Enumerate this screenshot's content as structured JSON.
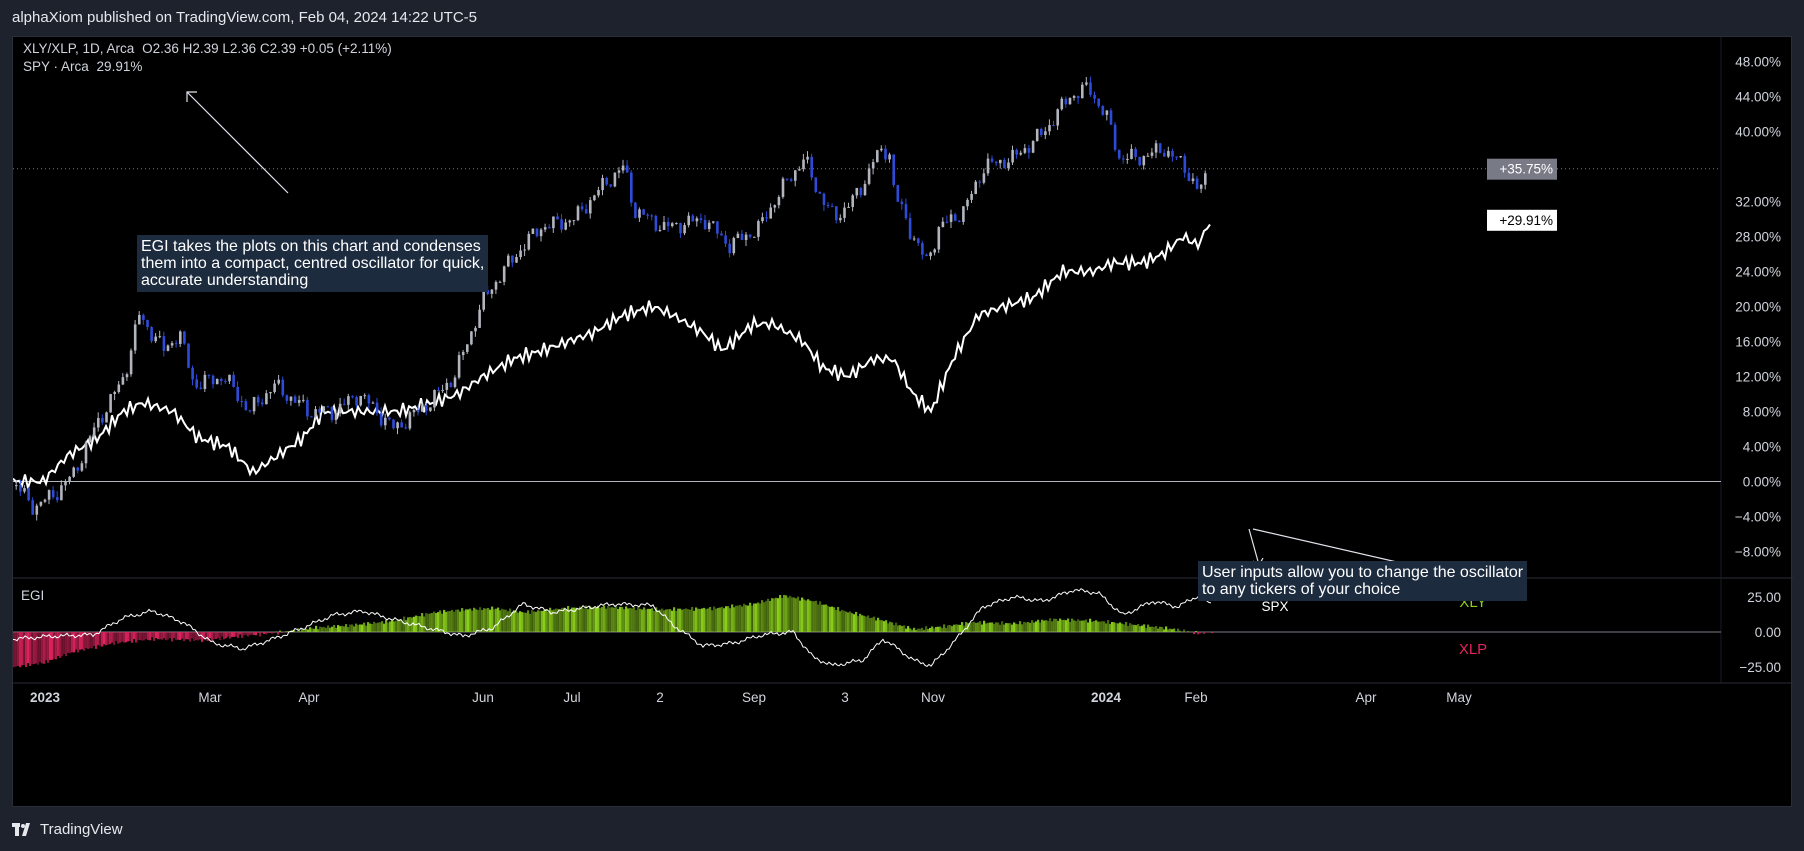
{
  "publish_bar": {
    "text": "alphaXiom published on TradingView.com, Feb 04, 2024 14:22 UTC-5"
  },
  "legend": {
    "symbol": "XLY/XLP, 1D, Arca",
    "ohlc": "O2.36  H2.39  L2.36  C2.39  +0.05 (+2.11%)",
    "compare_symbol": "SPY · Arca",
    "compare_value": "29.91%"
  },
  "notes": {
    "egi_note": [
      "EGI takes the plots on this chart and condenses",
      "them into a compact, centred oscillator for quick,",
      "accurate understanding"
    ],
    "inputs_note": [
      "User inputs allow you to change the oscillator",
      "to any tickers of your choice"
    ]
  },
  "indicator": {
    "name": "EGI",
    "label_spx": "SPX",
    "label_xly": "XLY",
    "label_xlp": "XLP",
    "axis_ticks": [
      "25.00",
      "0.00",
      "−25.00"
    ]
  },
  "price_axis": {
    "ticks": [
      "48.00%",
      "44.00%",
      "40.00%",
      "32.00%",
      "28.00%",
      "24.00%",
      "20.00%",
      "16.00%",
      "12.00%",
      "8.00%",
      "4.00%",
      "0.00%",
      "−4.00%",
      "−8.00%"
    ],
    "badge_main": "+35.75%",
    "badge_spy": "+29.91%"
  },
  "time_axis": {
    "labels": [
      {
        "text": "2023",
        "bold": true
      },
      {
        "text": "Mar",
        "bold": false
      },
      {
        "text": "Apr",
        "bold": false
      },
      {
        "text": "Jun",
        "bold": false
      },
      {
        "text": "Jul",
        "bold": false
      },
      {
        "text": "2",
        "bold": false
      },
      {
        "text": "Sep",
        "bold": false
      },
      {
        "text": "3",
        "bold": false
      },
      {
        "text": "Nov",
        "bold": false
      },
      {
        "text": "2024",
        "bold": true
      },
      {
        "text": "Feb",
        "bold": false
      },
      {
        "text": "Apr",
        "bold": false
      },
      {
        "text": "May",
        "bold": false
      }
    ]
  },
  "footer": {
    "brand": "TradingView"
  },
  "colors": {
    "bg": "#000000",
    "candle_up": "#b2b5be",
    "candle_down": "#2e4bd8",
    "spy_line": "#ffffff",
    "osc_green": "#8bd11a",
    "osc_red": "#e0245e"
  },
  "chart_data": {
    "type": "line",
    "series": [
      {
        "name": "XLY/XLP",
        "kind": "candles",
        "x": [
          "2023-01-03",
          "2023-02-01",
          "2023-03-01",
          "2023-04-03",
          "2023-05-01",
          "2023-06-01",
          "2023-07-03",
          "2023-08-01",
          "2023-09-01",
          "2023-10-02",
          "2023-11-01",
          "2023-12-01",
          "2024-01-02",
          "2024-02-02"
        ],
        "values": [
          -0.5,
          14,
          10,
          8,
          8,
          28,
          36,
          28,
          35,
          32,
          26,
          38,
          37,
          35.75
        ]
      },
      {
        "name": "SPY",
        "kind": "line",
        "x": [
          "2023-01-03",
          "2023-02-01",
          "2023-03-01",
          "2023-04-03",
          "2023-05-01",
          "2023-06-01",
          "2023-07-03",
          "2023-08-01",
          "2023-09-01",
          "2023-10-02",
          "2023-11-01",
          "2023-12-01",
          "2024-01-02",
          "2024-02-02"
        ],
        "values": [
          0,
          9,
          5,
          5,
          9,
          13,
          19,
          18,
          18,
          13,
          10,
          20,
          24,
          29.91
        ]
      }
    ],
    "ylim": [
      -10,
      50
    ],
    "ytick_format": "percent"
  }
}
